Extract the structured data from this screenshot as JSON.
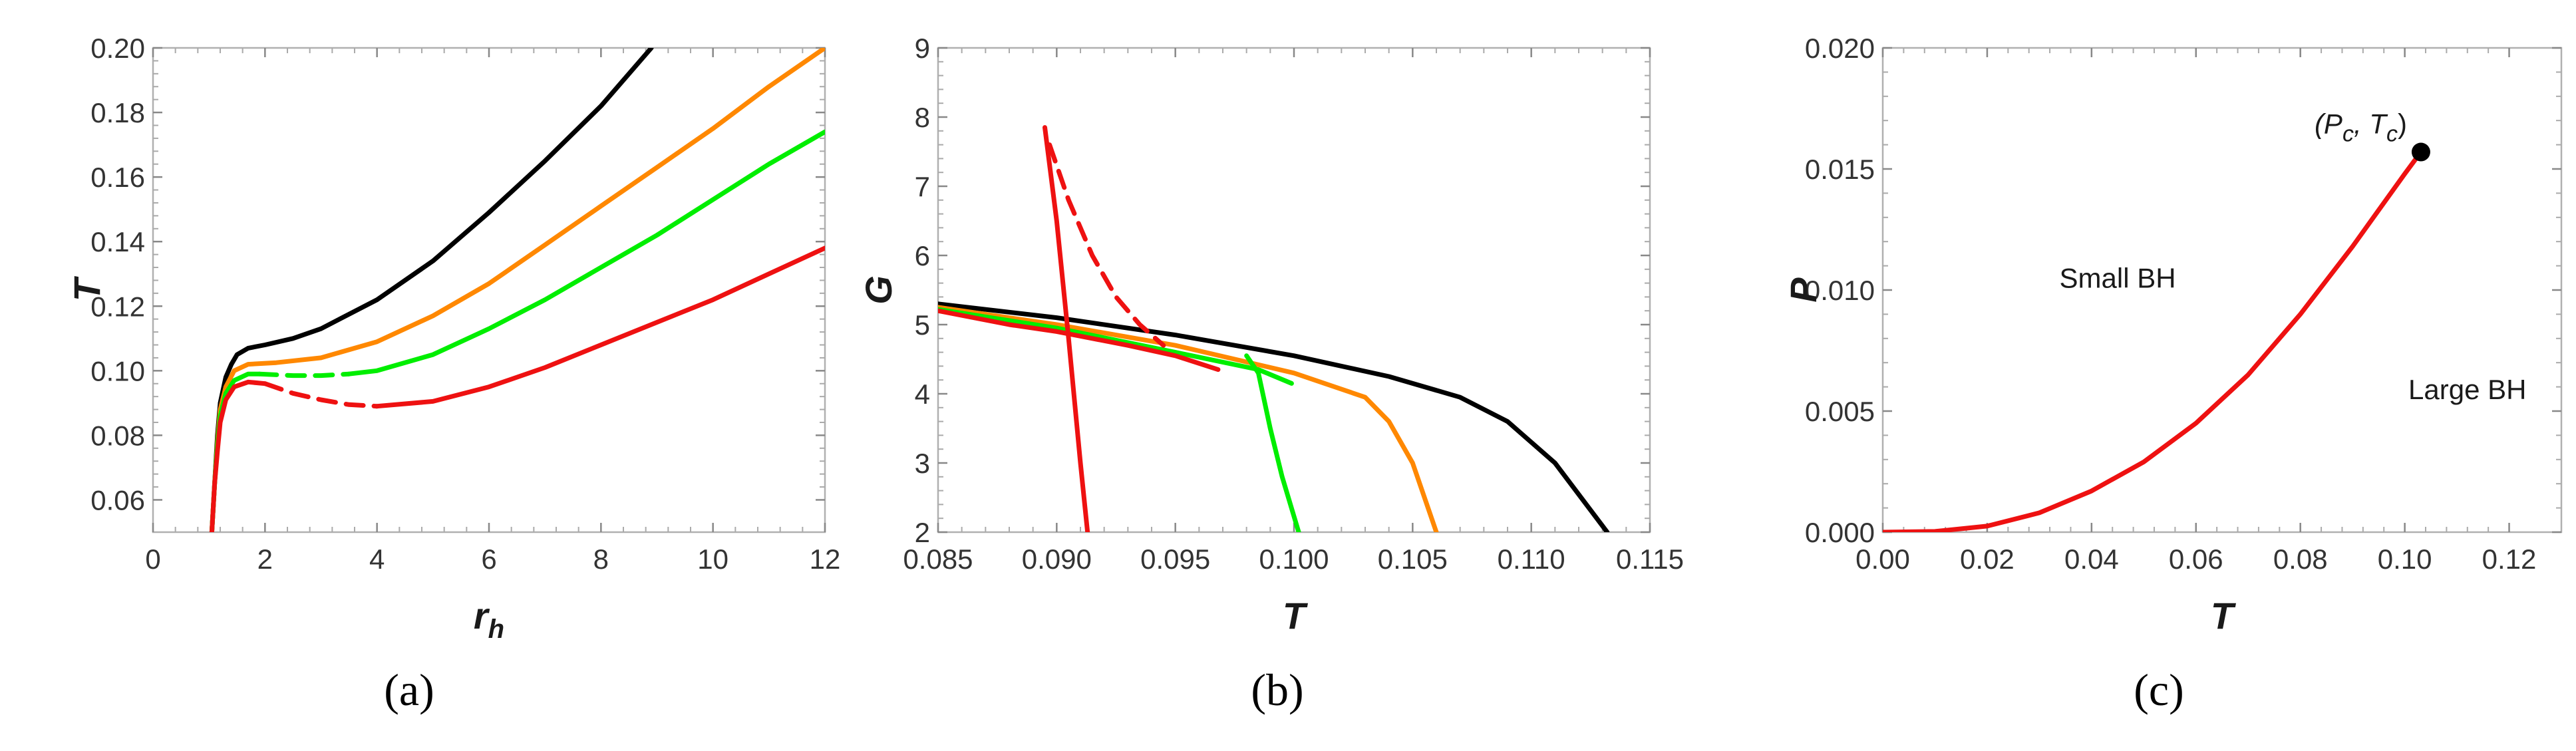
{
  "chart_data": [
    {
      "type": "line",
      "caption": "(a)",
      "xlabel": "r",
      "xlabel_sub": "h",
      "ylabel": "T",
      "xlim": [
        0,
        12
      ],
      "ylim": [
        0.05,
        0.2
      ],
      "xticks": [
        0,
        2,
        4,
        6,
        8,
        10,
        12
      ],
      "xtick_labels": [
        "0",
        "2",
        "4",
        "6",
        "8",
        "10",
        "12"
      ],
      "yticks": [
        0.06,
        0.08,
        0.1,
        0.12,
        0.14,
        0.16,
        0.18,
        0.2
      ],
      "ytick_labels": [
        "0.06",
        "0.08",
        "0.10",
        "0.12",
        "0.14",
        "0.16",
        "0.18",
        "0.20"
      ],
      "series": [
        {
          "color": "#000000",
          "segments": [
            {
              "style": "solid",
              "points": [
                [
                  1.05,
                  0.05
                ],
                [
                  1.1,
                  0.065
                ],
                [
                  1.15,
                  0.08
                ],
                [
                  1.2,
                  0.09
                ],
                [
                  1.3,
                  0.098
                ],
                [
                  1.4,
                  0.102
                ],
                [
                  1.5,
                  0.105
                ],
                [
                  1.7,
                  0.107
                ],
                [
                  2.0,
                  0.108
                ],
                [
                  2.5,
                  0.11
                ],
                [
                  3,
                  0.113
                ],
                [
                  4,
                  0.122
                ],
                [
                  5,
                  0.134
                ],
                [
                  6,
                  0.149
                ],
                [
                  7,
                  0.165
                ],
                [
                  8,
                  0.182
                ],
                [
                  8.9,
                  0.2
                ]
              ]
            }
          ]
        },
        {
          "color": "#ff8800",
          "segments": [
            {
              "style": "solid",
              "points": [
                [
                  1.05,
                  0.05
                ],
                [
                  1.1,
                  0.065
                ],
                [
                  1.15,
                  0.078
                ],
                [
                  1.2,
                  0.088
                ],
                [
                  1.3,
                  0.095
                ],
                [
                  1.45,
                  0.1
                ],
                [
                  1.7,
                  0.102
                ],
                [
                  2.2,
                  0.1025
                ],
                [
                  3,
                  0.104
                ],
                [
                  4,
                  0.109
                ],
                [
                  5,
                  0.117
                ],
                [
                  6,
                  0.127
                ],
                [
                  7,
                  0.139
                ],
                [
                  8,
                  0.151
                ],
                [
                  9,
                  0.163
                ],
                [
                  10,
                  0.175
                ],
                [
                  11,
                  0.188
                ],
                [
                  12,
                  0.2
                ]
              ]
            }
          ]
        },
        {
          "color": "#00ee00",
          "segments": [
            {
              "style": "solid",
              "points": [
                [
                  1.05,
                  0.05
                ],
                [
                  1.1,
                  0.065
                ],
                [
                  1.15,
                  0.077
                ],
                [
                  1.2,
                  0.086
                ],
                [
                  1.3,
                  0.093
                ],
                [
                  1.45,
                  0.097
                ],
                [
                  1.7,
                  0.099
                ],
                [
                  1.9,
                  0.099
                ]
              ]
            },
            {
              "style": "dashed",
              "points": [
                [
                  1.9,
                  0.099
                ],
                [
                  2.5,
                  0.0985
                ],
                [
                  3,
                  0.0985
                ],
                [
                  3.5,
                  0.099
                ]
              ]
            },
            {
              "style": "solid",
              "points": [
                [
                  3.5,
                  0.099
                ],
                [
                  4,
                  0.1
                ],
                [
                  5,
                  0.105
                ],
                [
                  6,
                  0.113
                ],
                [
                  7,
                  0.122
                ],
                [
                  8,
                  0.132
                ],
                [
                  9,
                  0.142
                ],
                [
                  10,
                  0.153
                ],
                [
                  11,
                  0.164
                ],
                [
                  12,
                  0.174
                ]
              ]
            }
          ]
        },
        {
          "color": "#ee1111",
          "segments": [
            {
              "style": "solid",
              "points": [
                [
                  1.05,
                  0.05
                ],
                [
                  1.1,
                  0.065
                ],
                [
                  1.15,
                  0.075
                ],
                [
                  1.2,
                  0.084
                ],
                [
                  1.3,
                  0.091
                ],
                [
                  1.45,
                  0.095
                ],
                [
                  1.7,
                  0.0965
                ],
                [
                  2.0,
                  0.096
                ]
              ]
            },
            {
              "style": "dashed",
              "points": [
                [
                  2.0,
                  0.096
                ],
                [
                  2.5,
                  0.093
                ],
                [
                  3,
                  0.091
                ],
                [
                  3.5,
                  0.0895
                ],
                [
                  4,
                  0.089
                ]
              ]
            },
            {
              "style": "solid",
              "points": [
                [
                  4,
                  0.089
                ],
                [
                  5,
                  0.0905
                ],
                [
                  6,
                  0.095
                ],
                [
                  7,
                  0.101
                ],
                [
                  8,
                  0.108
                ],
                [
                  9,
                  0.115
                ],
                [
                  10,
                  0.122
                ],
                [
                  11,
                  0.13
                ],
                [
                  12,
                  0.138
                ]
              ]
            }
          ]
        }
      ]
    },
    {
      "type": "line",
      "caption": "(b)",
      "xlabel": "T",
      "ylabel": "G",
      "xlim": [
        0.085,
        0.115
      ],
      "ylim": [
        2,
        9
      ],
      "xticks": [
        0.085,
        0.09,
        0.095,
        0.1,
        0.105,
        0.11,
        0.115
      ],
      "xtick_labels": [
        "0.085",
        "0.090",
        "0.095",
        "0.100",
        "0.105",
        "0.110",
        "0.115"
      ],
      "yticks": [
        2,
        3,
        4,
        5,
        6,
        7,
        8,
        9
      ],
      "ytick_labels": [
        "2",
        "3",
        "4",
        "5",
        "6",
        "7",
        "8",
        "9"
      ],
      "series": [
        {
          "color": "#000000",
          "segments": [
            {
              "style": "solid",
              "points": [
                [
                  0.085,
                  5.3
                ],
                [
                  0.09,
                  5.1
                ],
                [
                  0.095,
                  4.85
                ],
                [
                  0.1,
                  4.55
                ],
                [
                  0.104,
                  4.25
                ],
                [
                  0.107,
                  3.95
                ],
                [
                  0.109,
                  3.6
                ],
                [
                  0.111,
                  3.0
                ],
                [
                  0.1132,
                  2.0
                ]
              ]
            }
          ]
        },
        {
          "color": "#ff8800",
          "segments": [
            {
              "style": "solid",
              "points": [
                [
                  0.085,
                  5.25
                ],
                [
                  0.09,
                  5.0
                ],
                [
                  0.095,
                  4.7
                ],
                [
                  0.1,
                  4.3
                ],
                [
                  0.103,
                  3.95
                ],
                [
                  0.104,
                  3.6
                ],
                [
                  0.105,
                  3.0
                ],
                [
                  0.106,
                  2.0
                ]
              ]
            }
          ]
        },
        {
          "color": "#00ee00",
          "segments": [
            {
              "style": "solid",
              "points": [
                [
                  0.085,
                  5.22
                ],
                [
                  0.09,
                  4.95
                ],
                [
                  0.095,
                  4.6
                ],
                [
                  0.0985,
                  4.35
                ],
                [
                  0.0999,
                  4.15
                ]
              ]
            },
            {
              "style": "solid",
              "points": [
                [
                  0.098,
                  4.55
                ],
                [
                  0.0985,
                  4.3
                ],
                [
                  0.099,
                  3.5
                ],
                [
                  0.0995,
                  2.8
                ],
                [
                  0.1002,
                  2.0
                ]
              ]
            }
          ]
        },
        {
          "color": "#ee1111",
          "segments": [
            {
              "style": "solid",
              "points": [
                [
                  0.085,
                  5.2
                ],
                [
                  0.088,
                  5.0
                ],
                [
                  0.09,
                  4.9
                ],
                [
                  0.093,
                  4.7
                ],
                [
                  0.095,
                  4.55
                ],
                [
                  0.0968,
                  4.35
                ]
              ]
            },
            {
              "style": "solid",
              "points": [
                [
                  0.0895,
                  7.85
                ],
                [
                  0.09,
                  6.5
                ],
                [
                  0.0905,
                  4.8
                ],
                [
                  0.091,
                  3.0
                ],
                [
                  0.0913,
                  2.0
                ]
              ]
            },
            {
              "style": "dashed",
              "points": [
                [
                  0.0897,
                  7.6
                ],
                [
                  0.0905,
                  6.8
                ],
                [
                  0.0915,
                  6.0
                ],
                [
                  0.0925,
                  5.4
                ],
                [
                  0.0935,
                  5.0
                ],
                [
                  0.0945,
                  4.7
                ]
              ]
            }
          ]
        }
      ]
    },
    {
      "type": "line",
      "caption": "(c)",
      "xlabel": "T",
      "ylabel": "P",
      "xlim": [
        0,
        0.13
      ],
      "ylim": [
        0,
        0.02
      ],
      "xticks": [
        0,
        0.02,
        0.04,
        0.06,
        0.08,
        0.1,
        0.12
      ],
      "xtick_labels": [
        "0.00",
        "0.02",
        "0.04",
        "0.06",
        "0.08",
        "0.10",
        "0.12"
      ],
      "yticks": [
        0,
        0.005,
        0.01,
        0.015,
        0.02
      ],
      "ytick_labels": [
        "0.000",
        "0.005",
        "0.010",
        "0.015",
        "0.020"
      ],
      "series": [
        {
          "color": "#ee1111",
          "segments": [
            {
              "style": "solid",
              "points": [
                [
                  0,
                  0
                ],
                [
                  0.01,
                  3e-05
                ],
                [
                  0.02,
                  0.00025
                ],
                [
                  0.03,
                  0.0008
                ],
                [
                  0.04,
                  0.0017
                ],
                [
                  0.05,
                  0.0029
                ],
                [
                  0.06,
                  0.0045
                ],
                [
                  0.07,
                  0.0065
                ],
                [
                  0.08,
                  0.009
                ],
                [
                  0.09,
                  0.0118
                ],
                [
                  0.1,
                  0.0148
                ],
                [
                  0.1031,
                  0.0157
                ]
              ]
            }
          ]
        }
      ],
      "critical_point": {
        "T": 0.1031,
        "P": 0.0157,
        "label": "(P",
        "label_sub1": "c",
        "label_mid": ",  T",
        "label_sub2": "c",
        "label_end": ")"
      },
      "annotations": [
        {
          "text": "Small BH",
          "T": 0.045,
          "P": 0.0101
        },
        {
          "text": "Large BH",
          "T": 0.112,
          "P": 0.0055
        }
      ]
    }
  ]
}
